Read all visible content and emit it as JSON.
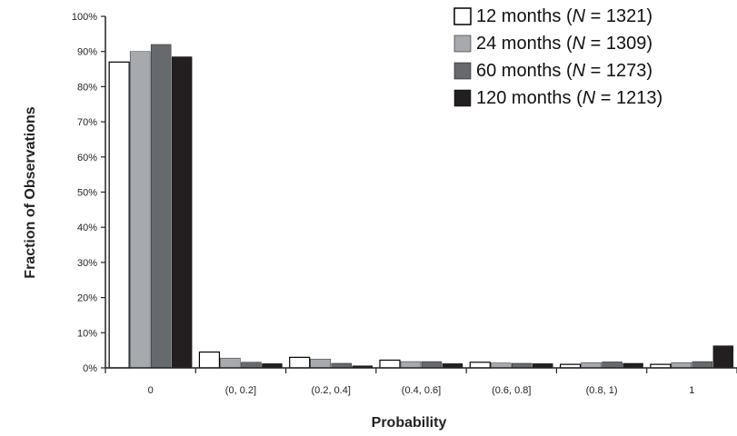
{
  "chart_data": {
    "type": "bar",
    "categories": [
      "0",
      "(0, 0.2]",
      "(0.2, 0.4]",
      "(0.4, 0.6]",
      "(0.6, 0.8]",
      "(0.8, 1)",
      "1"
    ],
    "series": [
      {
        "name": "12 months (N = 1321)",
        "label_main": "12 months (",
        "label_n": "N",
        "label_rest": " = 1321)",
        "color": "#ffffff",
        "values": [
          87,
          4.5,
          3.0,
          2.2,
          1.6,
          1.0,
          1.0
        ]
      },
      {
        "name": "24 months (N = 1309)",
        "label_main": "24 months (",
        "label_n": "N",
        "label_rest": " = 1309)",
        "color": "#a6aaaf",
        "values": [
          90,
          2.8,
          2.5,
          1.8,
          1.4,
          1.5,
          1.5
        ]
      },
      {
        "name": "60 months (N = 1273)",
        "label_main": "60 months (",
        "label_n": "N",
        "label_rest": " = 1273)",
        "color": "#666a6e",
        "values": [
          92,
          1.6,
          1.3,
          1.8,
          1.3,
          1.7,
          1.8
        ]
      },
      {
        "name": "120 months (N = 1213)",
        "label_main": "120 months (",
        "label_n": "N",
        "label_rest": " = 1213)",
        "color": "#231f20",
        "values": [
          88.5,
          1.2,
          0.6,
          1.2,
          1.2,
          1.3,
          6.3
        ]
      }
    ],
    "ytick_labels": [
      "0%",
      "10%",
      "20%",
      "30%",
      "40%",
      "50%",
      "60%",
      "70%",
      "80%",
      "90%",
      "100%"
    ],
    "xlabel": "Probability",
    "ylabel": "Fraction of Observations",
    "ylim": [
      0,
      100
    ],
    "grid": false,
    "legend_position": "top-right"
  }
}
